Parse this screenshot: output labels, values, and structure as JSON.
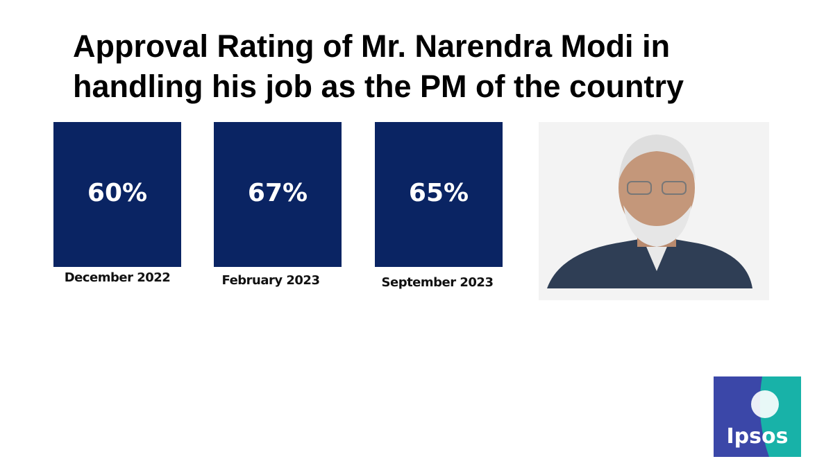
{
  "title_lines": [
    "Approval Rating of Mr. Narendra Modi in",
    "handling his job as the PM of the country"
  ],
  "cards": [
    {
      "value": "60%",
      "label": "December 2022"
    },
    {
      "value": "67%",
      "label": "February 2023"
    },
    {
      "value": "65%",
      "label": "September 2023"
    }
  ],
  "logo": "Ipsos"
}
